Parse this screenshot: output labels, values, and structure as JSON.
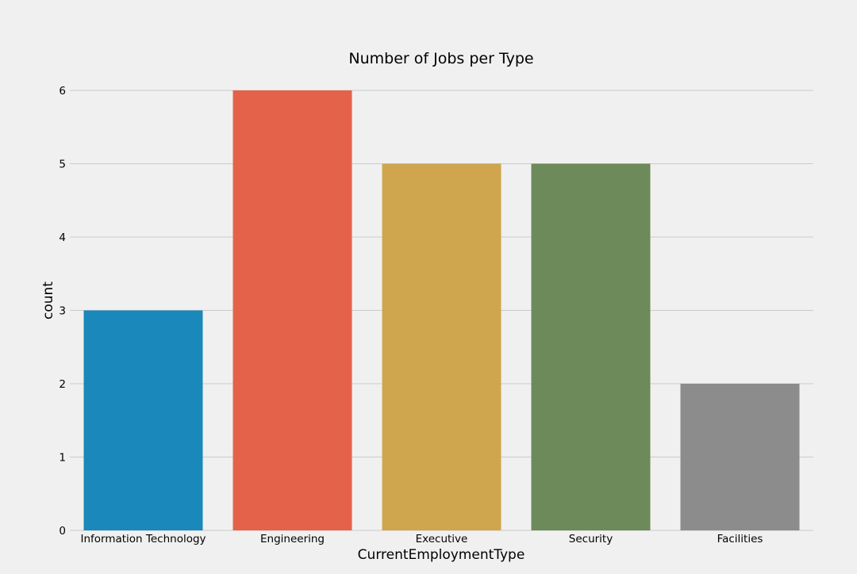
{
  "chart_data": {
    "type": "bar",
    "title": "Number of Jobs per Type",
    "xlabel": "CurrentEmploymentType",
    "ylabel": "count",
    "categories": [
      "Information Technology",
      "Engineering",
      "Executive",
      "Security",
      "Facilities"
    ],
    "values": [
      3,
      6,
      5,
      5,
      2
    ],
    "colors": [
      "#1b88bb",
      "#e5624a",
      "#cfa64e",
      "#6d8a5a",
      "#8c8c8c"
    ],
    "ylim": [
      0,
      6
    ],
    "yticks": [
      "0",
      "1",
      "2",
      "3",
      "4",
      "5",
      "6"
    ],
    "grid": "horizontal",
    "background": "#f0f0f0",
    "legend": "none"
  }
}
